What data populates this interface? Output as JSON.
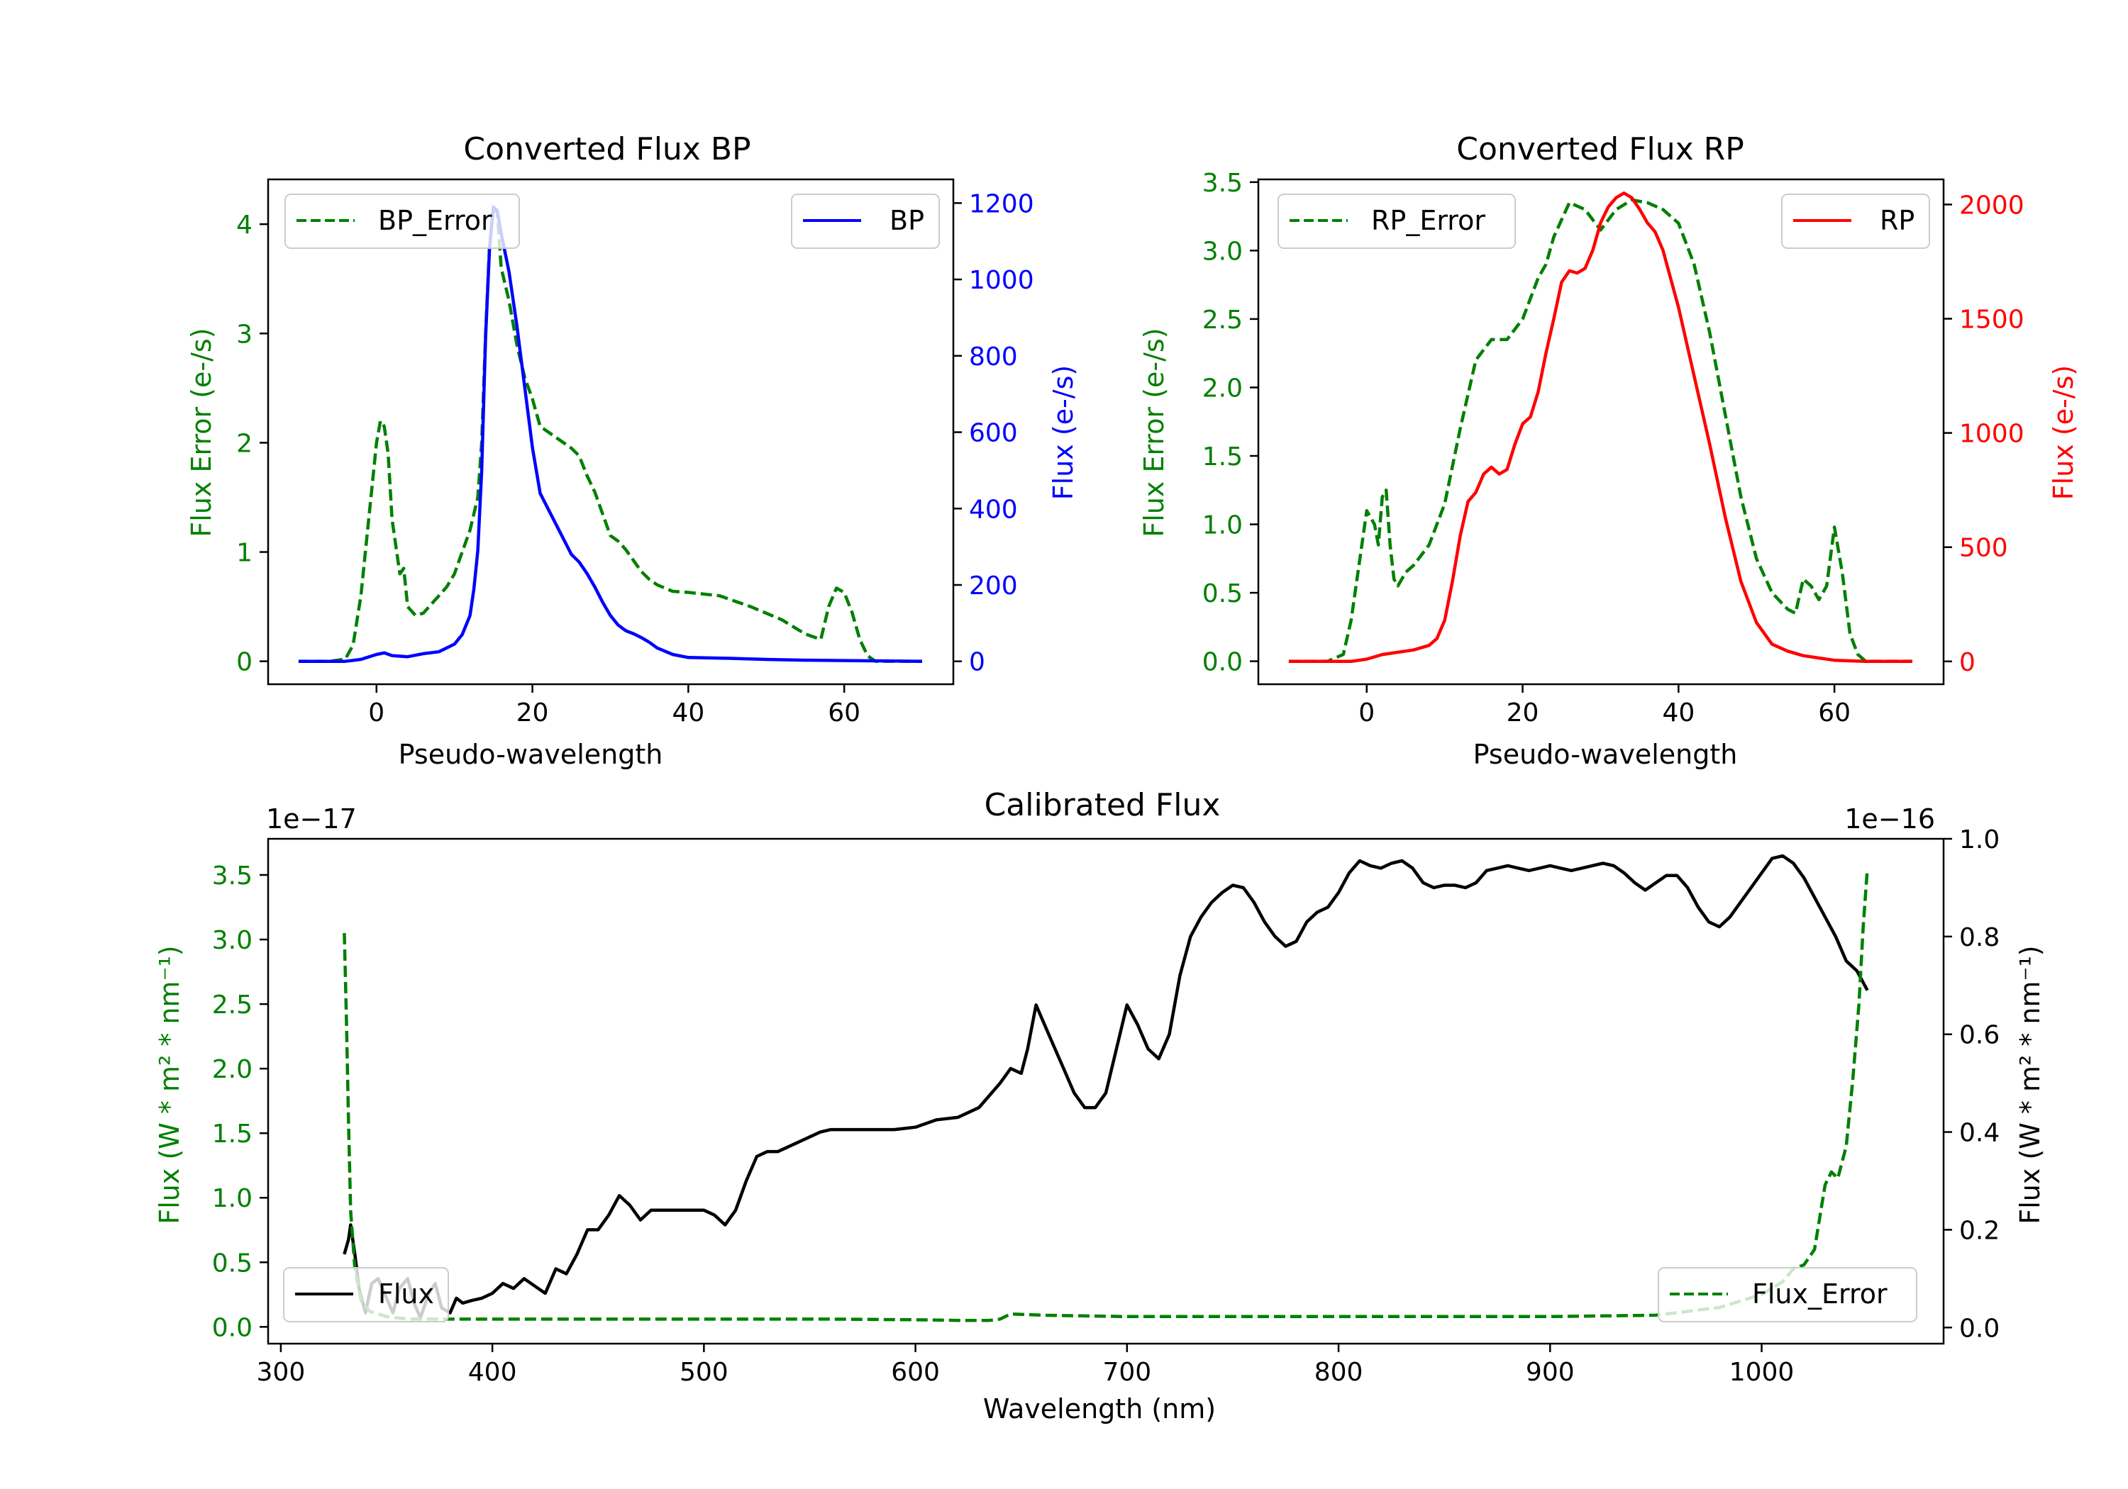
{
  "chart_data": [
    {
      "id": "bp",
      "type": "line",
      "title": "Converted Flux BP",
      "xlabel": "Pseudo-wavelength",
      "ylabel_left": "Flux Error (e-/s)",
      "ylabel_right": "Flux (e-/s)",
      "xlim": [
        -13.9,
        74
      ],
      "ylim_left": [
        -0.21,
        4.41
      ],
      "ylim_right": [
        -60,
        1262
      ],
      "xticks": [
        0,
        20,
        40,
        60
      ],
      "yticks_left": [
        0,
        1,
        2,
        3,
        4
      ],
      "yticks_right": [
        0,
        200,
        400,
        600,
        800,
        1000,
        1200
      ],
      "colors": {
        "left": "#008000",
        "right": "#0000ff"
      },
      "legend_left": {
        "label": "BP_Error",
        "position": "upper left"
      },
      "legend_right": {
        "label": "BP",
        "position": "upper right"
      },
      "series": [
        {
          "name": "BP_Error",
          "axis": "left",
          "color": "#008000",
          "style": "dashed",
          "x": [
            -10,
            -6,
            -4,
            -3,
            -2,
            -1,
            0,
            0.5,
            1,
            1.5,
            2,
            3,
            3.5,
            4,
            5,
            6,
            7,
            8,
            9,
            10,
            11,
            12,
            13,
            13.5,
            14,
            14.5,
            15,
            15.5,
            16,
            17,
            18,
            19,
            20,
            21,
            22,
            23,
            24,
            25,
            26,
            27,
            28,
            29,
            30,
            31,
            32,
            33,
            34,
            35,
            36,
            38,
            40,
            44,
            48,
            52,
            55,
            57,
            58,
            59,
            60,
            61,
            62,
            63,
            64,
            66,
            70
          ],
          "values": [
            0,
            0,
            0.02,
            0.15,
            0.6,
            1.3,
            2.0,
            2.2,
            2.15,
            1.9,
            1.3,
            0.8,
            0.85,
            0.5,
            0.42,
            0.44,
            0.52,
            0.6,
            0.68,
            0.8,
            1.0,
            1.2,
            1.5,
            2.0,
            3.0,
            3.8,
            4.15,
            4.1,
            3.6,
            3.3,
            2.9,
            2.6,
            2.4,
            2.15,
            2.1,
            2.05,
            2.0,
            1.95,
            1.88,
            1.7,
            1.55,
            1.35,
            1.15,
            1.1,
            1.02,
            0.92,
            0.82,
            0.75,
            0.7,
            0.64,
            0.63,
            0.6,
            0.5,
            0.38,
            0.25,
            0.2,
            0.5,
            0.67,
            0.63,
            0.45,
            0.2,
            0.05,
            0,
            0,
            0
          ]
        },
        {
          "name": "BP",
          "axis": "right",
          "color": "#0000ff",
          "style": "solid",
          "x": [
            -10,
            -4,
            -2,
            0,
            1,
            2,
            4,
            6,
            8,
            10,
            11,
            12,
            12.5,
            13,
            13.5,
            14,
            14.5,
            15,
            15.5,
            16,
            17,
            18,
            19,
            20,
            21,
            22,
            23,
            24,
            25,
            26,
            27,
            28,
            29,
            30,
            31,
            32,
            33,
            34,
            35,
            36,
            38,
            40,
            45,
            50,
            55,
            60,
            65,
            70
          ],
          "values": [
            0,
            0,
            5,
            18,
            22,
            15,
            12,
            20,
            25,
            45,
            70,
            120,
            190,
            290,
            500,
            850,
            1080,
            1190,
            1180,
            1120,
            1020,
            880,
            720,
            560,
            440,
            400,
            360,
            320,
            280,
            260,
            230,
            195,
            155,
            120,
            95,
            80,
            72,
            62,
            50,
            35,
            18,
            10,
            8,
            5,
            3,
            2,
            1,
            0
          ]
        }
      ]
    },
    {
      "id": "rp",
      "type": "line",
      "title": "Converted Flux RP",
      "xlabel": "Pseudo-wavelength",
      "ylabel_left": "Flux Error (e-/s)",
      "ylabel_right": "Flux (e-/s)",
      "xlim": [
        -13.9,
        74
      ],
      "ylim_left": [
        -0.168,
        3.52
      ],
      "ylim_right": [
        -100,
        2110
      ],
      "xticks": [
        0,
        20,
        40,
        60
      ],
      "yticks_left": [
        0.0,
        0.5,
        1.0,
        1.5,
        2.0,
        2.5,
        3.0,
        3.5
      ],
      "yticks_right": [
        0,
        500,
        1000,
        1500,
        2000
      ],
      "colors": {
        "left": "#008000",
        "right": "#ff0000"
      },
      "legend_left": {
        "label": "RP_Error",
        "position": "upper left"
      },
      "legend_right": {
        "label": "RP",
        "position": "upper right"
      },
      "series": [
        {
          "name": "RP_Error",
          "axis": "left",
          "color": "#008000",
          "style": "dashed",
          "x": [
            -10,
            -5,
            -3,
            -2,
            -1,
            0,
            1,
            1.5,
            2,
            2.5,
            3,
            3.5,
            4,
            5,
            6,
            8,
            10,
            12,
            14,
            16,
            18,
            20,
            22,
            23,
            24,
            26,
            28,
            30,
            32,
            34,
            36,
            38,
            40,
            42,
            44,
            46,
            48,
            50,
            52,
            54,
            55,
            56,
            57,
            58,
            59,
            60,
            61,
            62,
            63,
            64,
            66,
            70
          ],
          "values": [
            0,
            0,
            0.05,
            0.3,
            0.7,
            1.1,
            1.0,
            0.85,
            1.2,
            1.25,
            0.85,
            0.6,
            0.55,
            0.65,
            0.7,
            0.85,
            1.15,
            1.7,
            2.2,
            2.35,
            2.35,
            2.5,
            2.8,
            2.9,
            3.1,
            3.35,
            3.3,
            3.15,
            3.3,
            3.37,
            3.35,
            3.3,
            3.2,
            2.9,
            2.4,
            1.8,
            1.2,
            0.75,
            0.5,
            0.38,
            0.35,
            0.6,
            0.55,
            0.45,
            0.55,
            0.98,
            0.65,
            0.2,
            0.05,
            0,
            0,
            0
          ]
        },
        {
          "name": "RP",
          "axis": "right",
          "color": "#ff0000",
          "style": "solid",
          "x": [
            -10,
            -2,
            0,
            2,
            4,
            6,
            8,
            9,
            10,
            11,
            12,
            13,
            14,
            15,
            16,
            17,
            18,
            19,
            20,
            21,
            22,
            23,
            24,
            25,
            26,
            27,
            28,
            29,
            30,
            31,
            32,
            33,
            34,
            35,
            36,
            37,
            38,
            40,
            42,
            44,
            46,
            48,
            50,
            52,
            54,
            56,
            58,
            60,
            64,
            70
          ],
          "values": [
            0,
            0,
            10,
            30,
            40,
            50,
            70,
            100,
            180,
            350,
            550,
            700,
            740,
            820,
            850,
            820,
            840,
            950,
            1040,
            1070,
            1180,
            1350,
            1500,
            1660,
            1710,
            1700,
            1720,
            1800,
            1920,
            1990,
            2030,
            2050,
            2030,
            1980,
            1920,
            1880,
            1800,
            1550,
            1250,
            950,
            630,
            350,
            170,
            75,
            45,
            25,
            15,
            5,
            0,
            0
          ]
        }
      ]
    },
    {
      "id": "calibrated",
      "type": "line",
      "title": "Calibrated Flux",
      "xlabel": "Wavelength (nm)",
      "ylabel_left": "Flux (W * m² * nm⁻¹)",
      "ylabel_right": "Flux (W * m² * nm⁻¹)",
      "offset_left": "1e−17",
      "offset_right": "1e−16",
      "xlim": [
        294,
        1086
      ],
      "ylim_left": [
        -0.13,
        3.78
      ],
      "ylim_right": [
        -0.033,
        1.0
      ],
      "xticks": [
        300,
        400,
        500,
        600,
        700,
        800,
        900,
        1000
      ],
      "yticks_left": [
        0.0,
        0.5,
        1.0,
        1.5,
        2.0,
        2.5,
        3.0,
        3.5
      ],
      "yticks_right": [
        0.0,
        0.2,
        0.4,
        0.6,
        0.8,
        1.0
      ],
      "colors": {
        "left": "#008000",
        "right": "#000000"
      },
      "legend_left": {
        "label": "Flux",
        "position": "lower left"
      },
      "legend_right": {
        "label": "Flux_Error",
        "position": "lower right"
      },
      "series": [
        {
          "name": "Flux",
          "axis": "right",
          "color": "#000000",
          "style": "solid",
          "x": [
            330,
            332,
            333,
            335,
            337,
            340,
            343,
            346,
            350,
            353,
            356,
            360,
            363,
            366,
            370,
            373,
            376,
            380,
            383,
            386,
            390,
            395,
            400,
            405,
            410,
            415,
            420,
            425,
            430,
            435,
            440,
            445,
            450,
            455,
            460,
            465,
            470,
            475,
            480,
            485,
            490,
            495,
            500,
            505,
            510,
            515,
            520,
            525,
            530,
            535,
            540,
            545,
            550,
            555,
            560,
            570,
            580,
            590,
            600,
            610,
            620,
            630,
            640,
            645,
            650,
            653,
            657,
            660,
            665,
            670,
            675,
            680,
            685,
            690,
            695,
            700,
            705,
            710,
            715,
            720,
            725,
            730,
            735,
            740,
            745,
            750,
            755,
            760,
            765,
            770,
            775,
            780,
            785,
            790,
            795,
            800,
            805,
            810,
            815,
            820,
            825,
            830,
            835,
            840,
            845,
            850,
            855,
            860,
            865,
            870,
            875,
            880,
            885,
            890,
            895,
            900,
            905,
            910,
            915,
            920,
            925,
            930,
            935,
            940,
            945,
            950,
            955,
            960,
            965,
            970,
            975,
            980,
            985,
            990,
            995,
            1000,
            1005,
            1010,
            1015,
            1020,
            1025,
            1030,
            1035,
            1040,
            1045,
            1050
          ],
          "values": [
            0.15,
            0.18,
            0.21,
            0.15,
            0.08,
            0.03,
            0.09,
            0.1,
            0.06,
            0.03,
            0.08,
            0.1,
            0.05,
            0.02,
            0.07,
            0.09,
            0.04,
            0.03,
            0.06,
            0.05,
            0.055,
            0.06,
            0.07,
            0.09,
            0.08,
            0.1,
            0.085,
            0.07,
            0.12,
            0.11,
            0.15,
            0.2,
            0.2,
            0.23,
            0.27,
            0.25,
            0.22,
            0.24,
            0.24,
            0.24,
            0.24,
            0.24,
            0.24,
            0.23,
            0.21,
            0.24,
            0.3,
            0.35,
            0.36,
            0.36,
            0.37,
            0.38,
            0.39,
            0.4,
            0.405,
            0.405,
            0.405,
            0.405,
            0.41,
            0.425,
            0.43,
            0.45,
            0.5,
            0.53,
            0.52,
            0.57,
            0.66,
            0.63,
            0.58,
            0.53,
            0.48,
            0.45,
            0.45,
            0.48,
            0.57,
            0.66,
            0.62,
            0.57,
            0.55,
            0.6,
            0.72,
            0.8,
            0.84,
            0.87,
            0.89,
            0.905,
            0.9,
            0.87,
            0.83,
            0.8,
            0.78,
            0.79,
            0.83,
            0.85,
            0.86,
            0.89,
            0.93,
            0.955,
            0.945,
            0.94,
            0.95,
            0.955,
            0.94,
            0.91,
            0.9,
            0.905,
            0.905,
            0.9,
            0.91,
            0.935,
            0.94,
            0.945,
            0.94,
            0.935,
            0.94,
            0.945,
            0.94,
            0.935,
            0.94,
            0.945,
            0.95,
            0.945,
            0.93,
            0.91,
            0.895,
            0.91,
            0.925,
            0.925,
            0.9,
            0.86,
            0.83,
            0.82,
            0.84,
            0.87,
            0.9,
            0.93,
            0.96,
            0.965,
            0.95,
            0.92,
            0.88,
            0.84,
            0.8,
            0.75,
            0.73,
            0.69
          ]
        },
        {
          "name": "Flux_Error",
          "axis": "left",
          "color": "#008000",
          "style": "dashed",
          "x": [
            330,
            331,
            332,
            333,
            335,
            338,
            342,
            350,
            360,
            380,
            400,
            420,
            440,
            480,
            520,
            560,
            600,
            620,
            635,
            640,
            645,
            660,
            700,
            750,
            800,
            850,
            900,
            950,
            980,
            990,
            1000,
            1010,
            1015,
            1020,
            1025,
            1028,
            1030,
            1033,
            1036,
            1040,
            1043,
            1046,
            1048,
            1050
          ],
          "values": [
            3.05,
            2.4,
            1.6,
            0.9,
            0.45,
            0.2,
            0.12,
            0.08,
            0.06,
            0.06,
            0.06,
            0.06,
            0.06,
            0.06,
            0.06,
            0.06,
            0.055,
            0.05,
            0.05,
            0.06,
            0.1,
            0.09,
            0.08,
            0.08,
            0.08,
            0.08,
            0.08,
            0.09,
            0.15,
            0.2,
            0.25,
            0.35,
            0.45,
            0.48,
            0.6,
            0.9,
            1.1,
            1.2,
            1.15,
            1.4,
            1.9,
            2.5,
            3.1,
            3.55
          ]
        }
      ]
    }
  ]
}
